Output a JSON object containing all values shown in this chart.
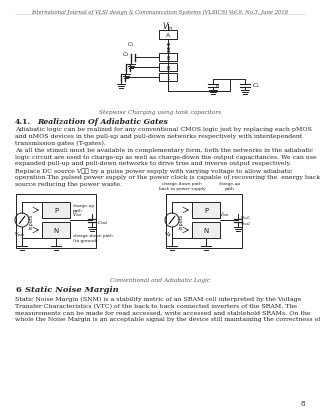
{
  "header": "International Journal of VLSI design & Communication Systems (VLSICS) Vol.9, No.3, June 2018",
  "page_number": "8",
  "bg_color": "#ffffff",
  "text_color": "#222222",
  "section_41_title_num": "4.1.",
  "section_41_title_text": "Realization Of Adiabatic Gates",
  "section_41_para1": "Adiabatic logic can be realized for any conventional CMOS logic just by replacing each pMOS\nand nMOS devices in the pull-up and pull-down networks respectively with interdependent\ntransmission gates (T-gates).",
  "section_41_para2": "As all the stimuli must be available in complementary form, both the networks in the adiabatic\nlogic circuit are used to charge-up as well as charge-down the output capacitances. We can use\nexpanded pull-up and pull-down networks to drive true and inverse output respectively.",
  "section_41_para3": "Replace DC source V␲␳ by a pulse power supply with varying voltage to allow adiabatic\noperation.The pulsed power supply or the power clock is capable of recovering the  energy backt\nsource reducing the power waste.",
  "fig1_caption": "Stepwise Charging using tank capacitors",
  "fig2_caption": "Conventional and Adiabatic Logic",
  "section_6_title_num": "6",
  "section_6_title_text": "Static Noise Margin",
  "section_6_para": "Static Noise Margin (SNM) is a stability metric of an SRAM cell interpreted by the Voltage\nTransfer Characteristics (VTC) of the back to back connected inverters of the SRAM. The\nmeasurements can be made for read accessed, write accessed and stablehold SRAMs. On the\nwhole the Noise Margin is an acceptable signal by the device still maintaining the correctness of"
}
